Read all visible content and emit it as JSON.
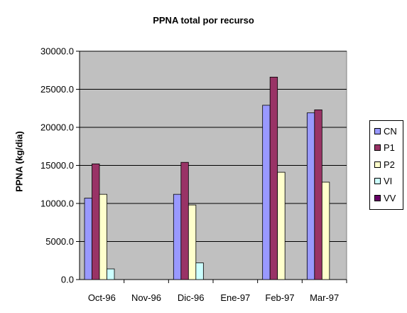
{
  "chart_data": {
    "type": "bar",
    "title": "PPNA total por recurso",
    "xlabel": "",
    "ylabel": "PPNA (kg/dia)",
    "categories": [
      "Oct-96",
      "Nov-96",
      "Dic-96",
      "Ene-97",
      "Feb-97",
      "Mar-97"
    ],
    "ylim": [
      0,
      30000
    ],
    "yticks": [
      "0.0",
      "5000.0",
      "10000.0",
      "15000.0",
      "20000.0",
      "25000.0",
      "30000.0"
    ],
    "grid": true,
    "legend_position": "right",
    "plot_background": "#c0c0c0",
    "series": [
      {
        "name": "CN",
        "color": "#9999ff",
        "values": [
          10700,
          null,
          11200,
          null,
          22900,
          21900
        ]
      },
      {
        "name": "P1",
        "color": "#993366",
        "values": [
          15200,
          null,
          15400,
          null,
          26600,
          22300
        ]
      },
      {
        "name": "P2",
        "color": "#ffffcc",
        "values": [
          11200,
          null,
          9800,
          null,
          14100,
          12800
        ]
      },
      {
        "name": "VI",
        "color": "#ccffff",
        "values": [
          1400,
          null,
          2200,
          null,
          null,
          null
        ]
      },
      {
        "name": "VV",
        "color": "#660066",
        "values": [
          null,
          null,
          null,
          null,
          null,
          null
        ]
      }
    ]
  }
}
